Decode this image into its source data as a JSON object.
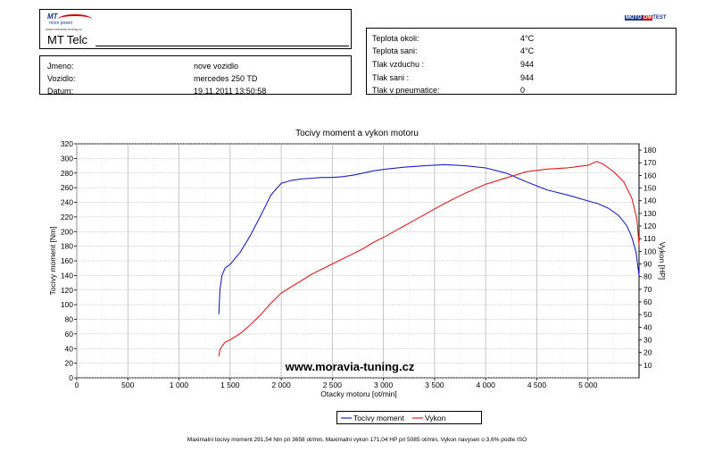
{
  "header": {
    "logo_text": "MT",
    "logo_tagline": "more power",
    "logo_url": "www.moravia-tuning.cz",
    "company": "MT Telc",
    "moto_logo": [
      "MOTO",
      "DM",
      "TEST"
    ]
  },
  "vehicle": {
    "rows": [
      {
        "label": "Jmeno:",
        "value": "nove vozidlo"
      },
      {
        "label": "Vozidlo:",
        "value": "mercedes 250 TD"
      },
      {
        "label": "Datum:",
        "value": "19.11.2011 13:50:58"
      }
    ]
  },
  "environment": {
    "rows": [
      {
        "label": "Teplota okoli:",
        "value": "4°C"
      },
      {
        "label": "Teplota sani:",
        "value": "4°C"
      },
      {
        "label": "Tlak vzduchu :",
        "value": "944"
      },
      {
        "label": "Tlak sani :",
        "value": "944"
      },
      {
        "label": "Tlak v pneumatice:",
        "value": "0"
      }
    ]
  },
  "chart_data": {
    "type": "line",
    "title": "Tocivy moment a vykon motoru",
    "xlabel": "Otacky motoru [ot/min]",
    "ylabel_left": "Tocivy moment [Nm]",
    "ylabel_right": "Vykon [HP]",
    "xlim": [
      0,
      5500
    ],
    "ylim_left": [
      0,
      320
    ],
    "ylim_right": [
      0,
      185
    ],
    "x_ticks": [
      0,
      500,
      1000,
      1500,
      2000,
      2500,
      3000,
      3500,
      4000,
      4500,
      5000
    ],
    "x_tick_labels": [
      "0",
      "500",
      "1 000",
      "1 500",
      "2 000",
      "2 500",
      "3 000",
      "3 500",
      "4 000",
      "4 500",
      "5 000"
    ],
    "y_left_ticks": [
      0,
      20,
      40,
      60,
      80,
      100,
      120,
      140,
      160,
      180,
      200,
      220,
      240,
      260,
      280,
      300,
      320
    ],
    "y_right_ticks": [
      10,
      20,
      30,
      40,
      50,
      60,
      70,
      80,
      90,
      100,
      110,
      120,
      130,
      140,
      150,
      160,
      170,
      180
    ],
    "grid": true,
    "legend_position": "bottom-center",
    "watermark": "www.moravia-tuning.cz",
    "series": [
      {
        "name": "Tocivy moment",
        "axis": "left",
        "color": "#2020c8",
        "x": [
          1390,
          1400,
          1420,
          1450,
          1500,
          1600,
          1700,
          1800,
          1900,
          2000,
          2050,
          2100,
          2200,
          2300,
          2400,
          2500,
          2600,
          2700,
          2800,
          2900,
          3000,
          3200,
          3400,
          3600,
          3800,
          4000,
          4200,
          4400,
          4600,
          4800,
          5000,
          5100,
          5200,
          5300,
          5380,
          5430,
          5470,
          5500
        ],
        "values": [
          87,
          120,
          140,
          150,
          155,
          172,
          195,
          222,
          250,
          266,
          268,
          270,
          272,
          273,
          274,
          274,
          275,
          277,
          280,
          283,
          285,
          288,
          290,
          291.5,
          290,
          287,
          280,
          268,
          257,
          250,
          242,
          238,
          232,
          222,
          208,
          192,
          172,
          140
        ]
      },
      {
        "name": "Vykon",
        "axis": "right",
        "color": "#e02020",
        "x": [
          1390,
          1400,
          1420,
          1450,
          1500,
          1600,
          1700,
          1800,
          1900,
          2000,
          2100,
          2200,
          2300,
          2400,
          2500,
          2600,
          2700,
          2800,
          2900,
          3000,
          3200,
          3400,
          3600,
          3800,
          4000,
          4200,
          4400,
          4600,
          4800,
          5000,
          5085,
          5150,
          5250,
          5350,
          5430,
          5480,
          5500
        ],
        "values": [
          17,
          22,
          25,
          28,
          30,
          35,
          42,
          50,
          59,
          67,
          72,
          77,
          82,
          86,
          90,
          94,
          98,
          102,
          107,
          111,
          120,
          129,
          138,
          146,
          153,
          158,
          163,
          165,
          166,
          168,
          171,
          169,
          163,
          155,
          142,
          125,
          105
        ]
      }
    ]
  },
  "legend": {
    "items": [
      {
        "label": "Tocivy moment",
        "color": "#2020c8"
      },
      {
        "label": "Vykon",
        "color": "#e02020"
      }
    ]
  },
  "footnote": "Maximalni tocivy moment 291,54 Nm pri 3658 ot/min,  Maximalni vykon 171,04 HP pri 5085 ot/min,  Vykon navysen o 3,6% podle ISO"
}
